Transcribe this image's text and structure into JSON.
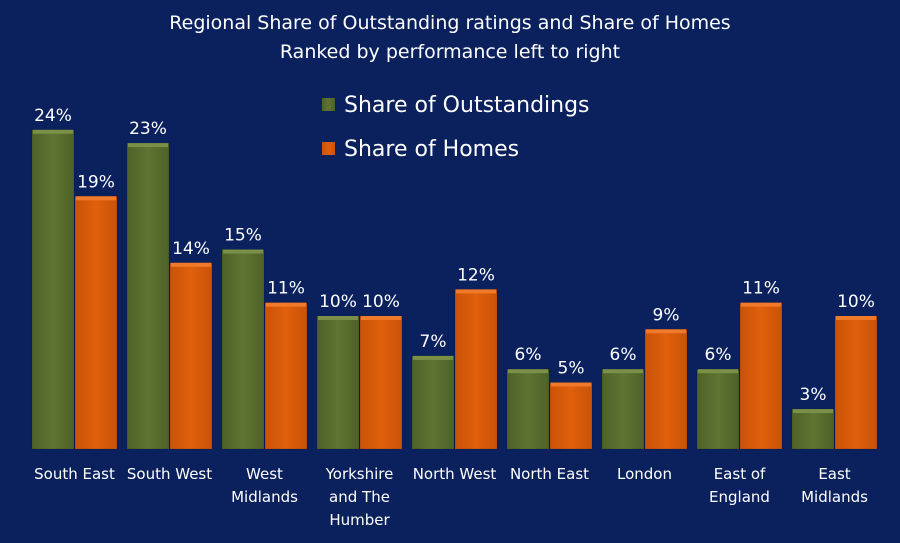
{
  "chart_data": {
    "type": "bar",
    "title": "Regional Share of Outstanding ratings and Share of Homes",
    "subtitle": "Ranked by performance left to right",
    "categories": [
      [
        "South East"
      ],
      [
        "South West"
      ],
      [
        "West",
        "Midlands"
      ],
      [
        "Yorkshire",
        "and The",
        "Humber"
      ],
      [
        "North West"
      ],
      [
        "North East"
      ],
      [
        "London"
      ],
      [
        "East of",
        "England"
      ],
      [
        "East",
        "Midlands"
      ]
    ],
    "series": [
      {
        "name": "Share of Outstandings",
        "color": "#5a6e2f",
        "values": [
          24,
          23,
          15,
          10,
          7,
          6,
          6,
          6,
          3
        ]
      },
      {
        "name": "Share of Homes",
        "color": "#d95a0a",
        "values": [
          19,
          14,
          11,
          10,
          12,
          5,
          9,
          11,
          10
        ]
      }
    ],
    "value_format": "percent",
    "ylim": [
      0,
      25
    ],
    "grid": false,
    "legend_placement": "top-center",
    "background_color": "#0b215e"
  }
}
